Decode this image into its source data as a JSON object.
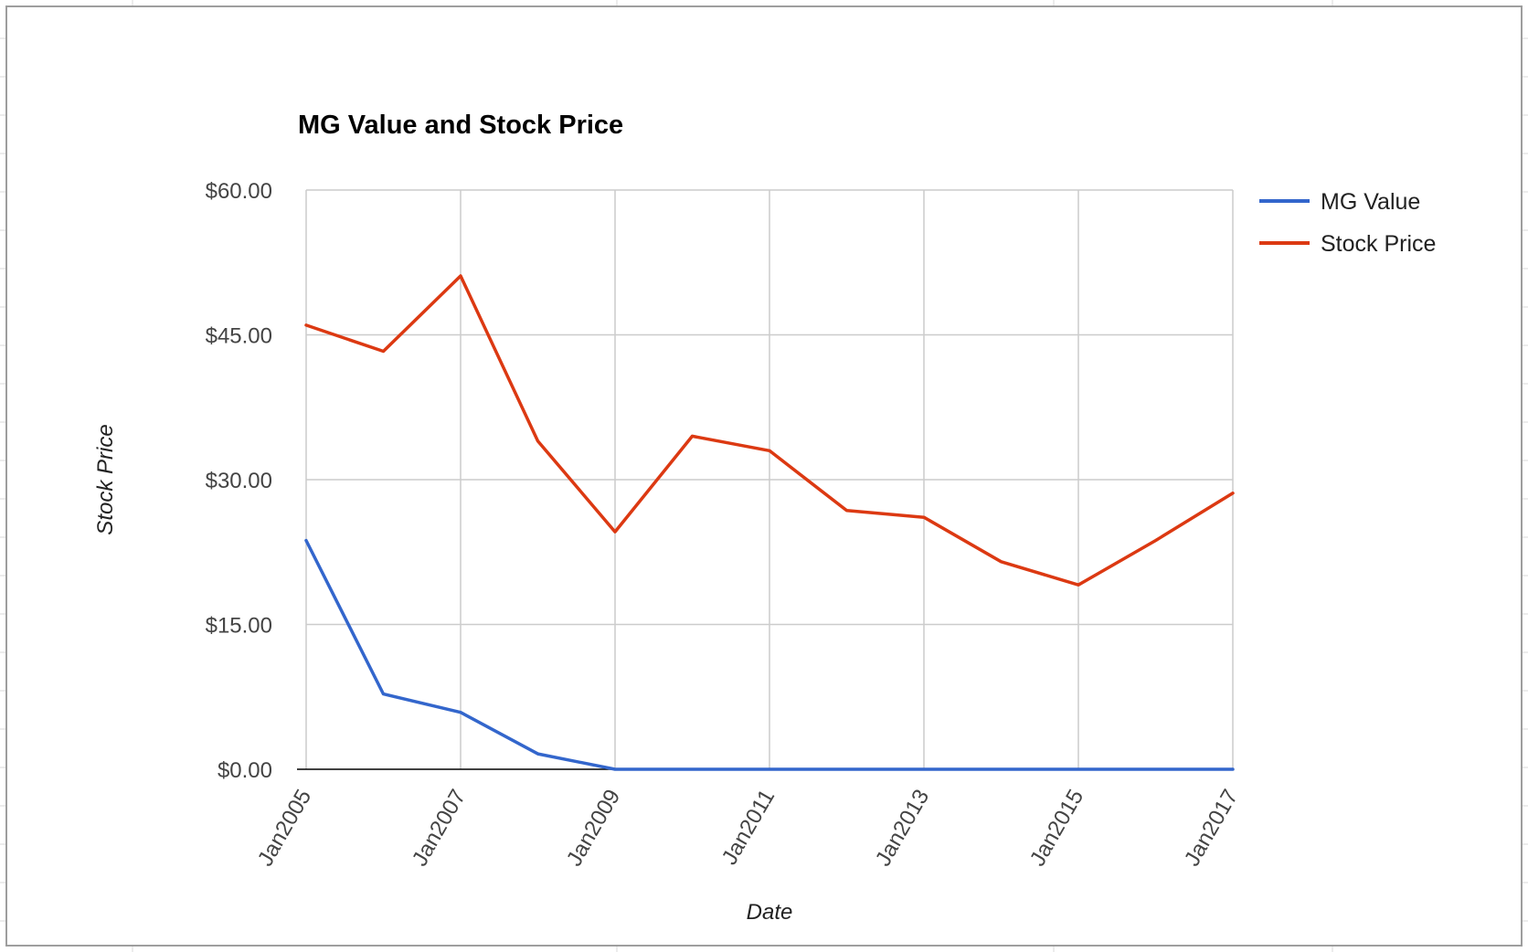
{
  "colors": {
    "sheet_grid": "#dadada",
    "gridline": "#cccccc",
    "baseline": "#000000",
    "series_mg_value": "#3366cc",
    "series_stock_price": "#dc3912"
  },
  "chart_data": {
    "type": "line",
    "title": "MG Value and Stock Price",
    "xlabel": "Date",
    "ylabel": "Stock Price",
    "x_start": "Jan2005",
    "x_end": "Jan2017",
    "x_tick_labels": [
      "Jan2005",
      "Jan2007",
      "Jan2009",
      "Jan2011",
      "Jan2013",
      "Jan2015",
      "Jan2017"
    ],
    "y_tick_labels": [
      "$0.00",
      "$15.00",
      "$30.00",
      "$45.00",
      "$60.00"
    ],
    "ylim": [
      0,
      60
    ],
    "grid": true,
    "legend_position": "right",
    "x": [
      "Jan2005",
      "Jan2006",
      "Jan2007",
      "Jan2008",
      "Jan2009",
      "Jan2010",
      "Jan2011",
      "Jan2012",
      "Jan2013",
      "Jan2014",
      "Jan2015",
      "Jan2016",
      "Jan2017"
    ],
    "series": [
      {
        "name": "MG Value",
        "values": [
          23.7,
          7.8,
          5.9,
          1.6,
          0,
          0,
          0,
          0,
          0,
          0,
          0,
          0,
          0
        ]
      },
      {
        "name": "Stock Price",
        "values": [
          46.0,
          43.3,
          51.1,
          34.0,
          24.6,
          34.5,
          33.0,
          26.8,
          26.1,
          21.5,
          19.1,
          23.7,
          28.6
        ]
      }
    ]
  }
}
